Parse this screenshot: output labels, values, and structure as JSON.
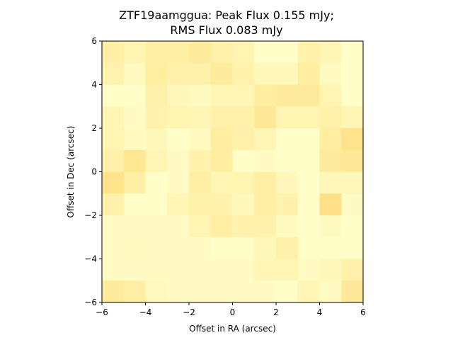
{
  "chart_data": {
    "type": "heatmap",
    "title_line1": "ZTF19aamggua: Peak Flux 0.155 mJy;",
    "title_line2": "RMS Flux 0.083 mJy",
    "xlabel": "Offset in RA (arcsec)",
    "ylabel": "Offset in Dec (arcsec)",
    "xlim": [
      -6,
      6
    ],
    "ylim": [
      -6,
      6
    ],
    "xticks": [
      -6,
      -4,
      -2,
      0,
      2,
      4,
      6
    ],
    "yticks": [
      -6,
      -4,
      -2,
      0,
      2,
      4,
      6
    ],
    "colormap": [
      "#ffffcc",
      "#ffeda0",
      "#fed976"
    ],
    "grid": false,
    "rows_top_to_bottom": [
      [
        0.45,
        0.3,
        0.45,
        0.45,
        0.55,
        0.4,
        0.3,
        0.05,
        0.05,
        0.35,
        0.25,
        0.05
      ],
      [
        0.35,
        0.15,
        0.5,
        0.4,
        0.4,
        0.55,
        0.35,
        0.2,
        0.2,
        0.5,
        0.15,
        0.05
      ],
      [
        0.05,
        0.05,
        0.4,
        0.2,
        0.15,
        0.25,
        0.25,
        0.5,
        0.55,
        0.55,
        0.3,
        0.05
      ],
      [
        0.25,
        0.1,
        0.35,
        0.3,
        0.25,
        0.4,
        0.4,
        0.6,
        0.3,
        0.3,
        0.4,
        0.3
      ],
      [
        0.3,
        0.15,
        0.2,
        0.05,
        0.15,
        0.5,
        0.4,
        0.25,
        0.05,
        0.05,
        0.5,
        0.75
      ],
      [
        0.4,
        0.65,
        0.3,
        0.1,
        0.35,
        0.5,
        0.05,
        0.1,
        0.05,
        0.05,
        0.55,
        0.6
      ],
      [
        0.75,
        0.45,
        0.05,
        0.1,
        0.45,
        0.25,
        0.3,
        0.45,
        0.2,
        0.05,
        0.2,
        0.2
      ],
      [
        0.4,
        0.05,
        0.05,
        0.25,
        0.35,
        0.35,
        0.2,
        0.45,
        0.35,
        0.05,
        0.8,
        0.1
      ],
      [
        0.1,
        0.1,
        0.1,
        0.1,
        0.3,
        0.45,
        0.35,
        0.35,
        0.15,
        0.05,
        0.15,
        0.05
      ],
      [
        0.1,
        0.15,
        0.1,
        0.1,
        0.1,
        0.05,
        0.05,
        0.2,
        0.4,
        0.05,
        0.05,
        0.05
      ],
      [
        0.1,
        0.1,
        0.1,
        0.1,
        0.1,
        0.1,
        0.1,
        0.25,
        0.25,
        0.1,
        0.2,
        0.4
      ],
      [
        0.55,
        0.45,
        0.15,
        0.1,
        0.1,
        0.1,
        0.1,
        0.1,
        0.05,
        0.25,
        0.1,
        0.6
      ]
    ]
  }
}
